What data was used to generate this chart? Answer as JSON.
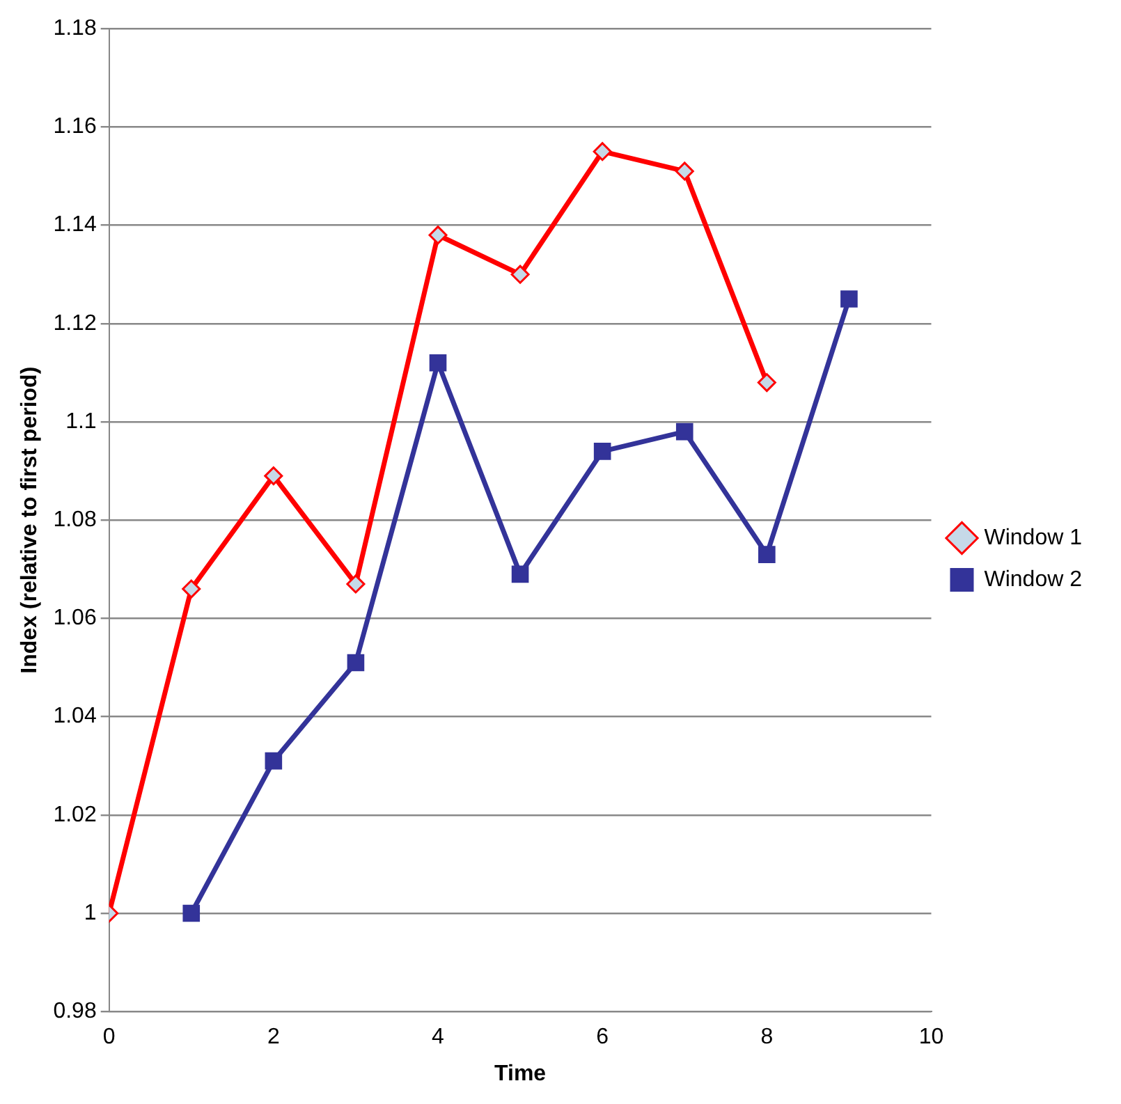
{
  "chart_data": {
    "type": "line",
    "xlabel": "Time",
    "ylabel": "Index (relative to first period)",
    "xlim": [
      0,
      10
    ],
    "xticks": [
      0,
      2,
      4,
      6,
      8,
      10
    ],
    "ylim": [
      0.98,
      1.18
    ],
    "yticks": [
      0.98,
      1,
      1.02,
      1.04,
      1.06,
      1.08,
      1.1,
      1.12,
      1.14,
      1.16,
      1.18
    ],
    "grid": "y",
    "legend": "right",
    "line_style": "solid",
    "series": [
      {
        "name": "Window 1",
        "color": "#ff0000",
        "marker": "diamond",
        "x": [
          0,
          1,
          2,
          3,
          4,
          5,
          6,
          7,
          8
        ],
        "values": [
          1.0,
          1.066,
          1.089,
          1.067,
          1.138,
          1.13,
          1.155,
          1.151,
          1.108
        ]
      },
      {
        "name": "Window 2",
        "color": "#333399",
        "marker": "square",
        "x": [
          1,
          2,
          3,
          4,
          5,
          6,
          7,
          8,
          9
        ],
        "values": [
          1.0,
          1.031,
          1.051,
          1.112,
          1.069,
          1.094,
          1.098,
          1.073,
          1.125
        ]
      }
    ]
  }
}
